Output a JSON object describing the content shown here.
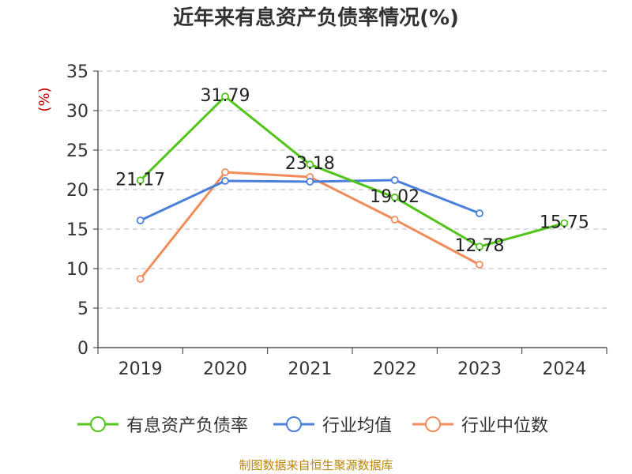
{
  "page": {
    "title": "近年来有息资产负债率情况(%)",
    "source": "制图数据来自恒生聚源数据库"
  },
  "colors": {
    "series_1": "#52c41a",
    "series_2": "#4b7fd9",
    "series_3": "#f28c5a",
    "unit_label": "#cc0000",
    "source_text": "#b8860b",
    "axis": "#333333",
    "grid": "#bbbbbb"
  },
  "chart_data": {
    "type": "line",
    "title": "近年来有息资产负债率情况(%)",
    "xlabel": "",
    "ylabel": "(%)",
    "categories": [
      "2019",
      "2020",
      "2021",
      "2022",
      "2023",
      "2024"
    ],
    "ylim": [
      0,
      35
    ],
    "yticks": [
      0,
      5,
      10,
      15,
      20,
      25,
      30,
      35
    ],
    "grid": "horizontal-dashed",
    "legend_position": "bottom",
    "series": [
      {
        "name": "有息资产负债率",
        "values": [
          21.17,
          31.79,
          23.18,
          19.02,
          12.78,
          15.75
        ],
        "data_labels": [
          "21.17",
          "31.79",
          "23.18",
          "19.02",
          "12.78",
          "15.75"
        ]
      },
      {
        "name": "行业均值",
        "values": [
          16.1,
          21.1,
          21.0,
          21.2,
          17.0,
          null
        ]
      },
      {
        "name": "行业中位数",
        "values": [
          8.7,
          22.2,
          21.6,
          16.2,
          10.5,
          null
        ]
      }
    ]
  }
}
